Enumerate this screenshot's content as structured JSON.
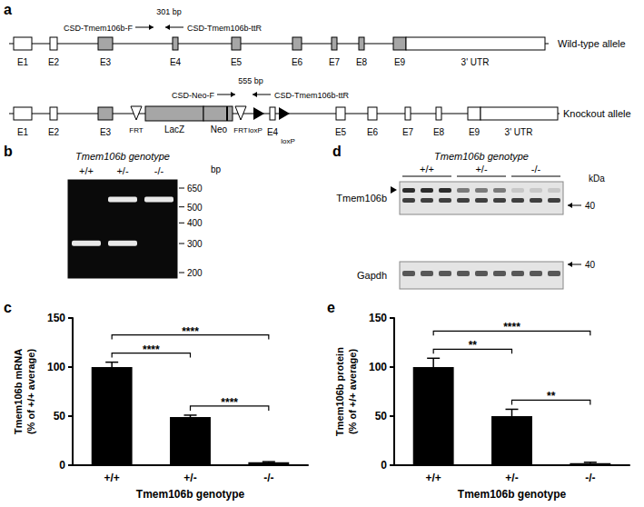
{
  "diagram": {
    "panel": "a",
    "alleles": [
      {
        "name": "Wild-type allele",
        "exons": [
          "E1",
          "E2",
          "E3",
          "E4",
          "E5",
          "E6",
          "E7",
          "E8",
          "E9"
        ],
        "utr": "3' UTR",
        "primers": {
          "forward": "CSD-Tmem106b-F",
          "reverse": "CSD-Tmem106b-ttR",
          "product": "301 bp"
        }
      },
      {
        "name": "Knockout allele",
        "exons": [
          "E1",
          "E2",
          "E3",
          "E4",
          "E5",
          "E6",
          "E7",
          "E8",
          "E9"
        ],
        "utr": "3' UTR",
        "cassette": [
          "FRT",
          "LacZ",
          "Neo",
          "FRT",
          "loxP",
          "loxP"
        ],
        "primers": {
          "forward": "CSD-Neo-F",
          "reverse": "CSD-Tmem106b-ttR",
          "product": "555 bp"
        }
      }
    ]
  },
  "gel": {
    "panel": "b",
    "title": "Tmem106b genotype",
    "lanes": [
      "+/+",
      "+/-",
      "-/-"
    ],
    "bands": [
      [
        301
      ],
      [
        555,
        301
      ],
      [
        555
      ]
    ],
    "ladder": [
      650,
      500,
      400,
      300,
      200
    ],
    "ladder_unit": "bp"
  },
  "blot": {
    "panel": "d",
    "title": "Tmem106b genotype",
    "lanes": [
      "+/+",
      "+/-",
      "-/-"
    ],
    "replicates": 3,
    "rows": [
      "Tmem106b",
      "Gapdh"
    ],
    "marker_unit": "kDa",
    "marker_values": [
      40,
      40
    ]
  },
  "chart_data": [
    {
      "panel": "c",
      "type": "bar",
      "categories": [
        "+/+",
        "+/-",
        "-/-"
      ],
      "values": [
        100,
        49,
        3
      ],
      "errors": [
        5,
        2,
        0.6
      ],
      "color": "#000000",
      "ylim": [
        0,
        150
      ],
      "yticks": [
        0,
        50,
        100,
        150
      ],
      "grid": false,
      "x_label": "Tmem106b genotype",
      "y_label": "Tmem106b mRNA\n(% of +/+ average)",
      "significance": [
        {
          "from": "+/+",
          "to": "+/-",
          "label": "****"
        },
        {
          "from": "+/-",
          "to": "-/-",
          "label": "****"
        },
        {
          "from": "+/+",
          "to": "-/-",
          "label": "****"
        }
      ]
    },
    {
      "panel": "e",
      "type": "bar",
      "categories": [
        "+/+",
        "+/-",
        "-/-"
      ],
      "values": [
        100,
        50,
        2
      ],
      "errors": [
        9,
        7,
        1
      ],
      "color": "#000000",
      "ylim": [
        0,
        150
      ],
      "yticks": [
        0,
        50,
        100,
        150
      ],
      "grid": false,
      "x_label": "Tmem106b genotype",
      "y_label": "Tmem106b protein\n(% of +/+ average)",
      "significance": [
        {
          "from": "+/+",
          "to": "+/-",
          "label": "**"
        },
        {
          "from": "+/-",
          "to": "-/-",
          "label": "**"
        },
        {
          "from": "+/+",
          "to": "-/-",
          "label": "****"
        }
      ]
    }
  ]
}
